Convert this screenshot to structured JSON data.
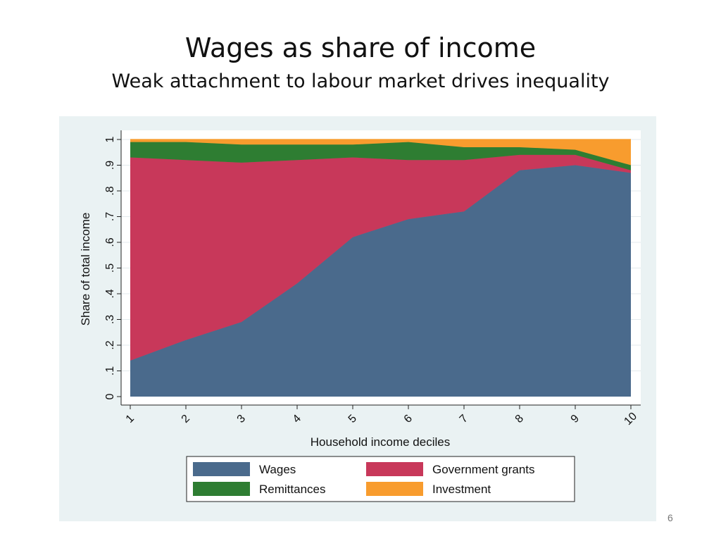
{
  "slide": {
    "title": "Wages as share of income",
    "subtitle": "Weak attachment to labour market drives inequality",
    "page_number": "6"
  },
  "chart_data": {
    "type": "area",
    "stacked": true,
    "x": [
      1,
      2,
      3,
      4,
      5,
      6,
      7,
      8,
      9,
      10
    ],
    "xlabel": "Household income deciles",
    "ylabel": "Share of total income",
    "ylim": [
      0,
      1
    ],
    "xlim": [
      1,
      10
    ],
    "x_ticks": [
      "1",
      "2",
      "3",
      "4",
      "5",
      "6",
      "7",
      "8",
      "9",
      "10"
    ],
    "y_ticks": [
      "0",
      ".1",
      ".2",
      ".3",
      ".4",
      ".5",
      ".6",
      ".7",
      ".8",
      ".9",
      "1"
    ],
    "y_tick_values": [
      0,
      0.1,
      0.2,
      0.3,
      0.4,
      0.5,
      0.6,
      0.7,
      0.8,
      0.9,
      1
    ],
    "grid": true,
    "legend_position": "bottom",
    "series": [
      {
        "name": "Wages",
        "color": "#4a6a8c",
        "values": [
          0.14,
          0.22,
          0.29,
          0.44,
          0.62,
          0.69,
          0.72,
          0.88,
          0.9,
          0.87
        ]
      },
      {
        "name": "Government grants",
        "color": "#c8385a",
        "values": [
          0.79,
          0.7,
          0.62,
          0.48,
          0.31,
          0.23,
          0.2,
          0.06,
          0.04,
          0.01
        ]
      },
      {
        "name": "Remittances",
        "color": "#2e7d32",
        "values": [
          0.06,
          0.07,
          0.07,
          0.06,
          0.05,
          0.07,
          0.05,
          0.03,
          0.02,
          0.02
        ]
      },
      {
        "name": "Investment",
        "color": "#f89c2e",
        "values": [
          0.01,
          0.01,
          0.02,
          0.02,
          0.02,
          0.01,
          0.03,
          0.03,
          0.04,
          0.1
        ]
      }
    ],
    "legend_order": [
      "Wages",
      "Government grants",
      "Remittances",
      "Investment"
    ]
  }
}
